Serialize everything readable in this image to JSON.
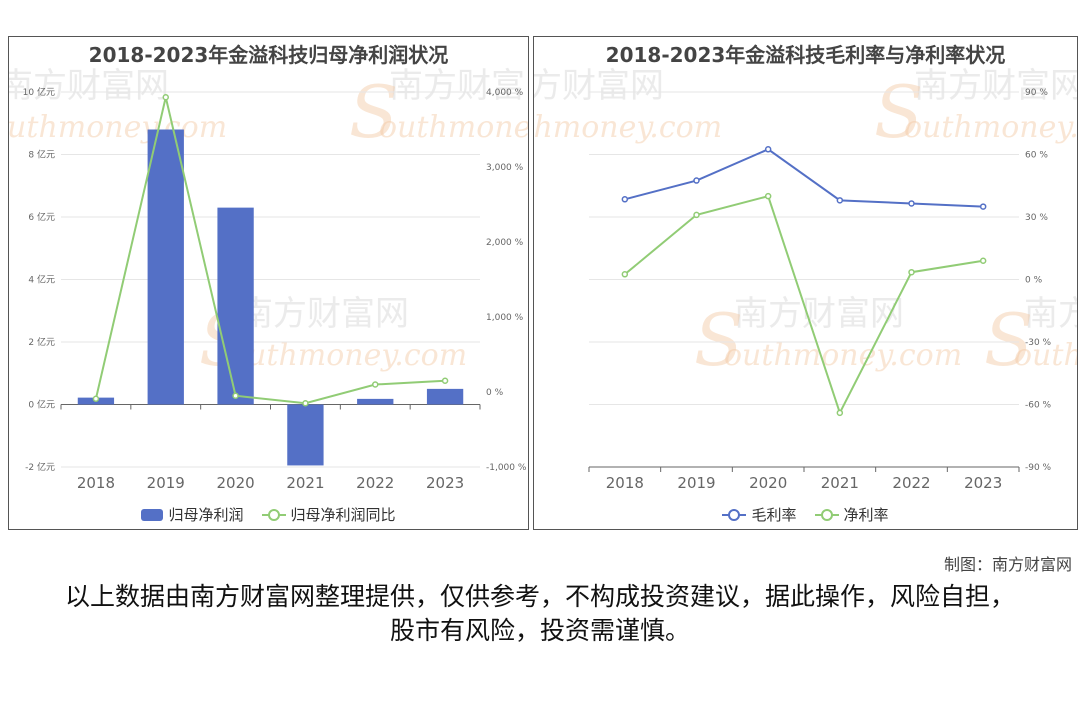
{
  "left_chart": {
    "title": "2018-2023年金溢科技归母净利润状况",
    "legend": [
      "归母净利润",
      "归母净利润同比"
    ]
  },
  "right_chart": {
    "title": "2018-2023年金溢科技毛利率与净利率状况",
    "legend": [
      "毛利率",
      "净利率"
    ]
  },
  "watermark": {
    "cn": "南方财富网",
    "en": "outhmoney.com",
    "initial": "S"
  },
  "footer": {
    "credit": "制图：南方财富网",
    "disclaimer": "以上数据由南方财富网整理提供，仅供参考，不构成投资建议，据此操作，风险自担，股市有风险，投资需谨慎。"
  },
  "colors": {
    "bar": "#5470c6",
    "green": "#91cc75",
    "blue": "#5470c6",
    "grid": "#e6e6e6",
    "axis": "#666666"
  },
  "chart_data": [
    {
      "type": "bar",
      "title": "2018-2023年金溢科技归母净利润状况",
      "categories": [
        "2018",
        "2019",
        "2020",
        "2021",
        "2022",
        "2023"
      ],
      "series": [
        {
          "name": "归母净利润",
          "type": "bar",
          "axis": "left",
          "values": [
            0.22,
            8.8,
            6.3,
            -1.95,
            0.18,
            0.5
          ]
        },
        {
          "name": "归母净利润同比",
          "type": "line",
          "axis": "right",
          "values": [
            -90,
            3930,
            -50,
            -150,
            100,
            150
          ]
        }
      ],
      "left_axis": {
        "ticks": [
          -2,
          0,
          2,
          4,
          6,
          8,
          10
        ],
        "unit": "亿元",
        "ylim": [
          -2,
          10
        ]
      },
      "right_axis": {
        "ticks": [
          -1000,
          0,
          1000,
          2000,
          3000,
          4000
        ],
        "unit": "%",
        "ylim": [
          -1000,
          4000
        ]
      },
      "grid": true,
      "legend_position": "bottom"
    },
    {
      "type": "line",
      "title": "2018-2023年金溢科技毛利率与净利率状况",
      "categories": [
        "2018",
        "2019",
        "2020",
        "2021",
        "2022",
        "2023"
      ],
      "series": [
        {
          "name": "毛利率",
          "values": [
            38.5,
            47.5,
            62.5,
            38,
            36.5,
            35
          ]
        },
        {
          "name": "净利率",
          "values": [
            2.5,
            31,
            40,
            -64,
            3.5,
            9
          ]
        }
      ],
      "right_axis": {
        "ticks": [
          -90,
          -60,
          -30,
          0,
          30,
          60,
          90
        ],
        "unit": "%",
        "ylim": [
          -90,
          90
        ]
      },
      "grid": true,
      "legend_position": "bottom"
    }
  ]
}
